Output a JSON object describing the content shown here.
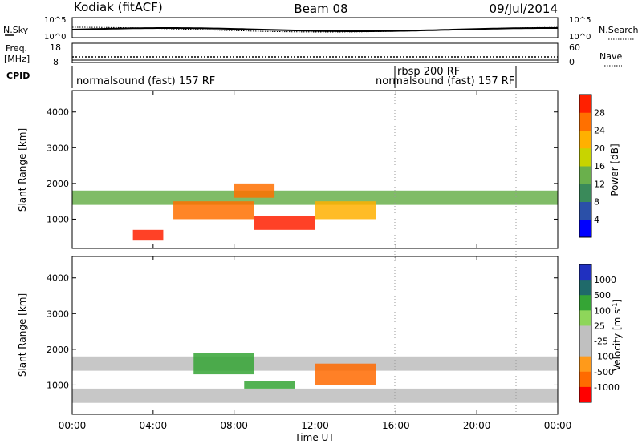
{
  "header": {
    "station": "Kodiak (fitACF)",
    "beam": "Beam 08",
    "date": "09/Jul/2014"
  },
  "summary_panels": {
    "nsky_label": "N.Sky",
    "nsearch_label": "N.Search",
    "nsky_ticks": [
      "10^5",
      "10^0"
    ],
    "nsearch_ticks": [
      "10^5",
      "10^0"
    ],
    "freq_label_line1": "Freq.",
    "freq_label_line2": "[MHz]",
    "freq_ticks": [
      "18",
      "8"
    ],
    "nave_label": "Nave",
    "nave_ticks": [
      "60",
      "0"
    ],
    "cpid_label": "CPID",
    "cpid_segments": [
      {
        "label": "normalsound (fast) 157 RF",
        "start_hour": 0.0,
        "end_hour": 16.0
      },
      {
        "label": "rbsp 200 RF",
        "start_hour": 16.0,
        "end_hour": 16.0
      },
      {
        "label": "normalsound (fast) 157 RF",
        "start_hour": 16.0,
        "end_hour": 22.0
      }
    ]
  },
  "colors": {
    "power_scale": [
      "#0000ff",
      "#2b50a8",
      "#3a8a5a",
      "#6ab04c",
      "#c8d400",
      "#ffb000",
      "#ff7000",
      "#ff2000"
    ],
    "velocity_scale": [
      "#2030c0",
      "#1f6a6a",
      "#35a535",
      "#8ed65a",
      "#c0c0c0",
      "#c0c0c0",
      "#ff9a1a",
      "#ff6a00",
      "#ff0000"
    ],
    "velocity_gray": "#bdbdbd"
  },
  "chart_data": [
    {
      "type": "heatmap",
      "title": "Power",
      "ylabel": "Slant Range [km]",
      "xlabel": "",
      "ylim": [
        180,
        4600
      ],
      "xlim_hours": [
        0,
        24
      ],
      "yticks": [
        1000,
        2000,
        3000,
        4000
      ],
      "colorbar_label": "Power [dB]",
      "colorbar_ticks": [
        "4",
        "8",
        "12",
        "16",
        "20",
        "24",
        "28"
      ],
      "data_regions": [
        {
          "t0": 0.0,
          "t1": 24.0,
          "r0": 1400,
          "r1": 1800,
          "level": 12
        },
        {
          "t0": 5.0,
          "t1": 9.0,
          "r0": 1000,
          "r1": 1500,
          "level": 24
        },
        {
          "t0": 3.0,
          "t1": 4.5,
          "r0": 400,
          "r1": 700,
          "level": 28
        },
        {
          "t0": 9.0,
          "t1": 12.0,
          "r0": 700,
          "r1": 1100,
          "level": 28
        },
        {
          "t0": 8.0,
          "t1": 10.0,
          "r0": 1600,
          "r1": 2000,
          "level": 24
        },
        {
          "t0": 12.0,
          "t1": 15.0,
          "r0": 1000,
          "r1": 1500,
          "level": 20
        }
      ]
    },
    {
      "type": "heatmap",
      "title": "Velocity",
      "ylabel": "Slant Range [km]",
      "xlabel": "Time UT",
      "ylim": [
        180,
        4600
      ],
      "xlim_hours": [
        0,
        24
      ],
      "yticks": [
        1000,
        2000,
        3000,
        4000
      ],
      "xticks": [
        "00:00",
        "04:00",
        "08:00",
        "12:00",
        "16:00",
        "20:00",
        "00:00"
      ],
      "colorbar_label": "Velocity [m s^-1]",
      "colorbar_ticks": [
        "1000",
        "500",
        "100",
        "25",
        "-25",
        "-100",
        "-500",
        "-1000"
      ],
      "data_regions": [
        {
          "t0": 0.0,
          "t1": 24.0,
          "r0": 1400,
          "r1": 1800,
          "level": 0
        },
        {
          "t0": 0.0,
          "t1": 24.0,
          "r0": 500,
          "r1": 900,
          "level": 0
        },
        {
          "t0": 6.0,
          "t1": 9.0,
          "r0": 1300,
          "r1": 1900,
          "level": 200
        },
        {
          "t0": 8.5,
          "t1": 11.0,
          "r0": 900,
          "r1": 1100,
          "level": 120
        },
        {
          "t0": 12.0,
          "t1": 15.0,
          "r0": 1000,
          "r1": 1600,
          "level": -300
        }
      ]
    }
  ]
}
